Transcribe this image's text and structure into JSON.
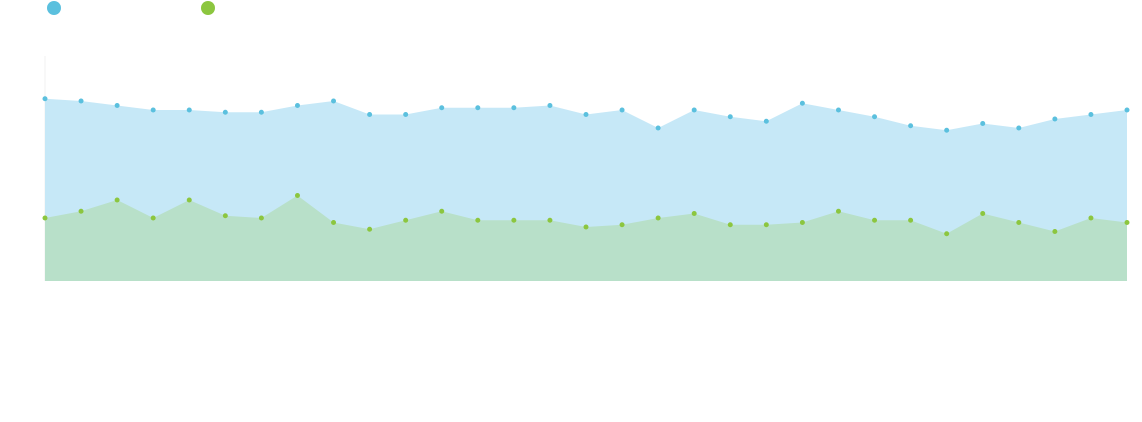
{
  "chart_data": {
    "type": "area",
    "categories": [
      null,
      null,
      null,
      null,
      null,
      null,
      null,
      null,
      null,
      null,
      null,
      null,
      null,
      null,
      null,
      null,
      null,
      null,
      null,
      null,
      null,
      null,
      null,
      null,
      null,
      null,
      null,
      null,
      null,
      null,
      null
    ],
    "ylim": [
      0,
      100
    ],
    "series": [
      {
        "color": "#5bc0de",
        "fill": "#c6e8f7",
        "values": [
          81,
          80,
          78,
          76,
          76,
          75,
          75,
          78,
          80,
          74,
          74,
          77,
          77,
          77,
          78,
          74,
          76,
          68,
          76,
          73,
          71,
          79,
          76,
          73,
          69,
          67,
          70,
          68,
          72,
          74,
          76
        ]
      },
      {
        "color": "#8cc63f",
        "fill": "#b8e0c9",
        "values": [
          28,
          31,
          36,
          28,
          36,
          29,
          28,
          38,
          26,
          23,
          27,
          31,
          27,
          27,
          27,
          24,
          25,
          28,
          30,
          25,
          25,
          26,
          31,
          27,
          27,
          21,
          30,
          26,
          22,
          28,
          26
        ]
      }
    ]
  }
}
